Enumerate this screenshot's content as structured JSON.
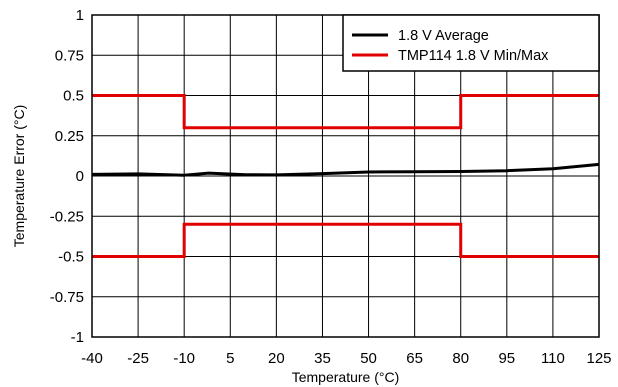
{
  "chart_data": {
    "type": "line",
    "xlabel": "Temperature (°C)",
    "ylabel": "Temperature Error (°C)",
    "xlim": [
      -40,
      125
    ],
    "ylim": [
      -1,
      1
    ],
    "x_ticks": [
      "-40",
      "-25",
      "-10",
      "5",
      "20",
      "35",
      "50",
      "65",
      "80",
      "95",
      "110",
      "125"
    ],
    "y_ticks": [
      "1",
      "0.75",
      "0.5",
      "0.25",
      "0",
      "-0.25",
      "-0.5",
      "-0.75",
      "-1"
    ],
    "grid": true,
    "legend_position": "top-right",
    "series": [
      {
        "name": "1.8 V Average",
        "color": "#000000",
        "points": [
          [
            -40,
            0.01
          ],
          [
            -25,
            0.013
          ],
          [
            -10,
            0.005
          ],
          [
            -2,
            0.018
          ],
          [
            10,
            0.008
          ],
          [
            20,
            0.007
          ],
          [
            35,
            0.015
          ],
          [
            50,
            0.025
          ],
          [
            65,
            0.026
          ],
          [
            80,
            0.028
          ],
          [
            95,
            0.033
          ],
          [
            110,
            0.045
          ],
          [
            125,
            0.072
          ]
        ]
      },
      {
        "name": "TMP114 1.8 V Min/Max",
        "color": "#e00000",
        "segments": [
          [
            [
              -40,
              0.5
            ],
            [
              -10,
              0.5
            ],
            [
              -10,
              0.3
            ],
            [
              80,
              0.3
            ],
            [
              80,
              0.5
            ],
            [
              125,
              0.5
            ]
          ],
          [
            [
              -40,
              -0.5
            ],
            [
              -10,
              -0.5
            ],
            [
              -10,
              -0.3
            ],
            [
              80,
              -0.3
            ],
            [
              80,
              -0.5
            ],
            [
              125,
              -0.5
            ]
          ]
        ]
      }
    ]
  }
}
